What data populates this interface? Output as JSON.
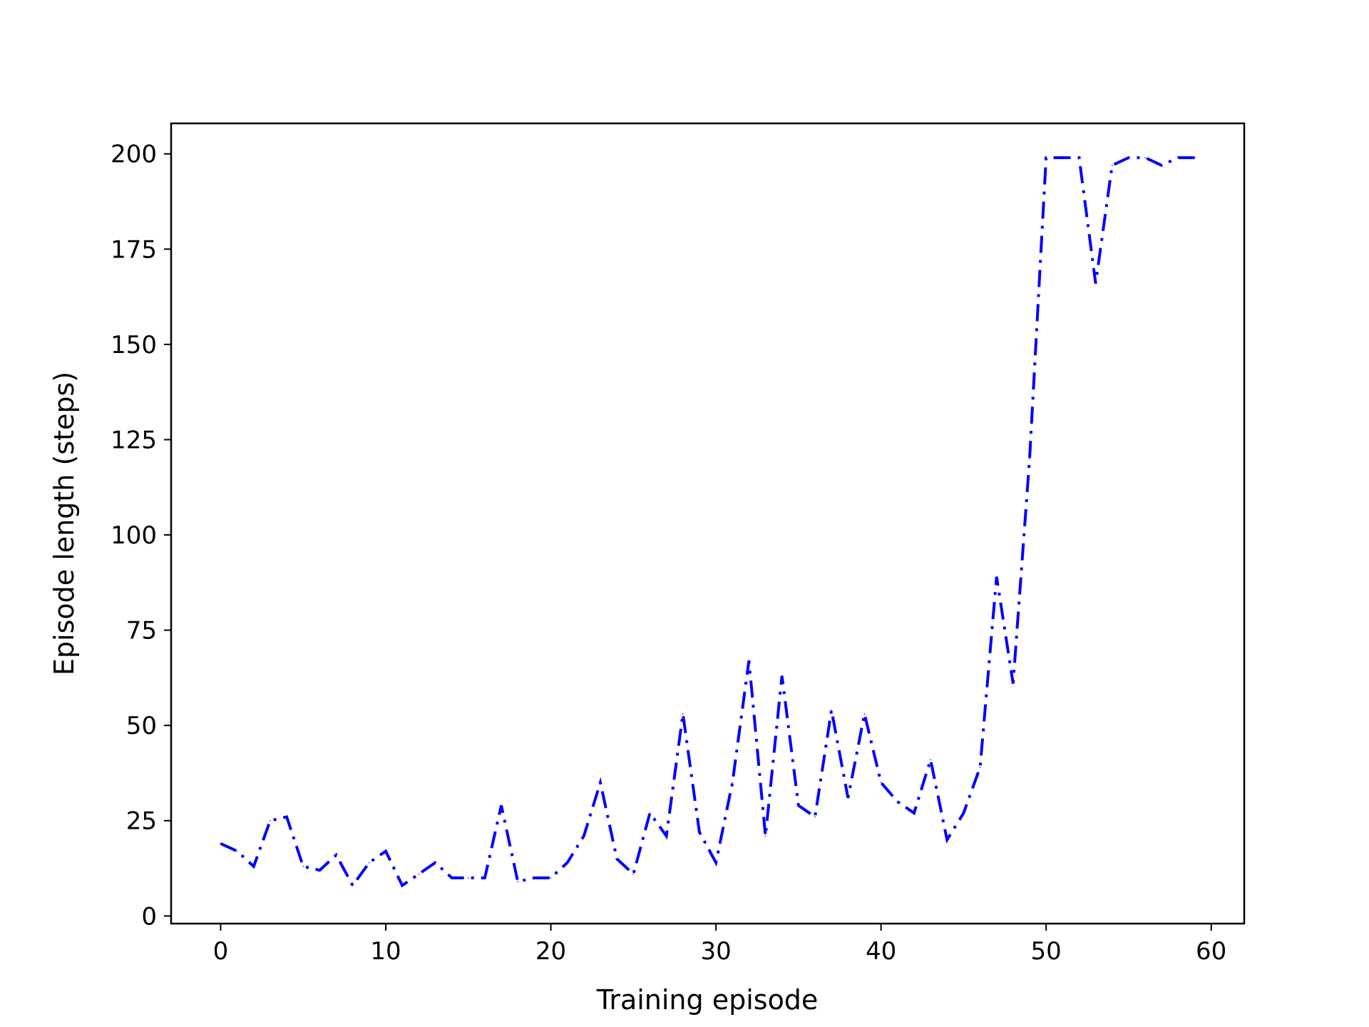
{
  "chart_data": {
    "type": "line",
    "title": "",
    "xlabel": "Training episode",
    "ylabel": "Episode length (steps)",
    "xlim": [
      -3,
      62
    ],
    "ylim": [
      -2,
      208
    ],
    "xticks": [
      0,
      10,
      20,
      30,
      40,
      50,
      60
    ],
    "yticks": [
      0,
      25,
      50,
      75,
      100,
      125,
      150,
      175,
      200
    ],
    "grid": false,
    "legend": "none",
    "series": [
      {
        "color": "#0000ff",
        "linestyle": "dash-dot",
        "x": [
          0,
          1,
          2,
          3,
          4,
          5,
          6,
          7,
          8,
          9,
          10,
          11,
          12,
          13,
          14,
          15,
          16,
          17,
          18,
          19,
          20,
          21,
          22,
          23,
          24,
          25,
          26,
          27,
          28,
          29,
          30,
          31,
          32,
          33,
          34,
          35,
          36,
          37,
          38,
          39,
          40,
          41,
          42,
          43,
          44,
          45,
          46,
          47,
          48,
          49,
          50,
          51,
          52,
          53,
          54,
          55,
          56,
          57,
          58,
          59
        ],
        "values": [
          19,
          17,
          13,
          25,
          26,
          13,
          12,
          16,
          8,
          14,
          17,
          8,
          11,
          14,
          10,
          10,
          10,
          29,
          9,
          10,
          10,
          14,
          21,
          35,
          15,
          11,
          27,
          21,
          53,
          22,
          14,
          35,
          67,
          21,
          63,
          29,
          26,
          54,
          31,
          53,
          35,
          30,
          27,
          41,
          20,
          27,
          39,
          89,
          61,
          120,
          199,
          199,
          199,
          166,
          197,
          199,
          199,
          197,
          199,
          199
        ]
      }
    ]
  }
}
